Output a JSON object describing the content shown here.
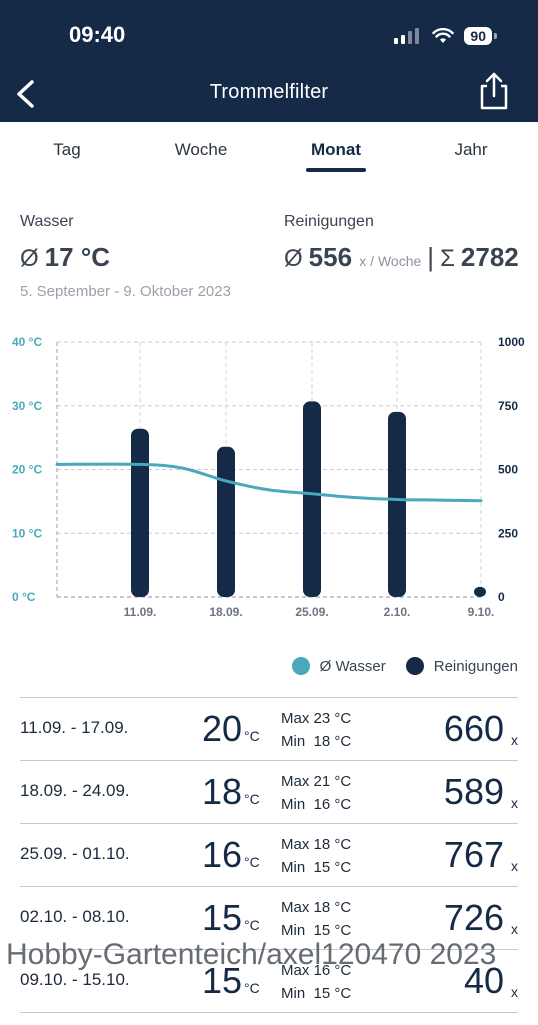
{
  "status_bar": {
    "time": "09:40",
    "battery": "90",
    "icons": [
      "signal-icon",
      "wifi-icon",
      "battery-icon"
    ]
  },
  "nav": {
    "title": "Trommelfilter",
    "back_icon": "chevron-left-icon",
    "share_icon": "share-icon"
  },
  "tabs": [
    {
      "label": "Tag",
      "active": false
    },
    {
      "label": "Woche",
      "active": false
    },
    {
      "label": "Monat",
      "active": true
    },
    {
      "label": "Jahr",
      "active": false
    }
  ],
  "summary": {
    "water_label": "Wasser",
    "water_avg_symbol": "Ø",
    "water_avg": "17 °C",
    "cleaning_label": "Reinigungen",
    "cleaning_avg_symbol": "Ø",
    "cleaning_avg": "556",
    "cleaning_avg_unit": "x / Woche",
    "separator": "|",
    "cleaning_sum_symbol": "Σ",
    "cleaning_sum": "2782",
    "date_range": "5. September - 9. Oktober 2023"
  },
  "chart_data": {
    "type": "bar",
    "categories": [
      "11.09.",
      "18.09.",
      "25.09.",
      "2.10.",
      "9.10."
    ],
    "left_ticks": [
      "0 °C",
      "10 °C",
      "20 °C",
      "30 °C",
      "40 °C"
    ],
    "right_ticks": [
      "0",
      "250",
      "500",
      "750",
      "1000"
    ],
    "ylim_left": [
      0,
      40
    ],
    "ylim_right": [
      0,
      1000
    ],
    "series": [
      {
        "name": "Reinigungen",
        "type": "bar",
        "axis": "right",
        "color": "#152a46",
        "values": [
          660,
          589,
          767,
          726,
          40
        ]
      },
      {
        "name": "Ø Wasser",
        "type": "line",
        "axis": "left",
        "color": "#4aa8bd",
        "x": [
          0,
          0.5,
          1,
          1.5,
          2,
          2.5,
          3,
          3.5,
          4
        ],
        "values": [
          20.8,
          20.2,
          18.2,
          16.8,
          16.2,
          15.6,
          15.3,
          15.2,
          15.1
        ]
      }
    ],
    "grid": true,
    "legend_position": "bottom-right"
  },
  "legend": [
    {
      "label": "Ø Wasser",
      "color": "#4aa8bd"
    },
    {
      "label": "Reinigungen",
      "color": "#152a46"
    }
  ],
  "rows": [
    {
      "range": "11.09. - 17.09.",
      "temp": "20",
      "temp_unit": "°C",
      "max": "Max 23 °C",
      "min": "Min  18 °C",
      "count": "660",
      "count_unit": "x"
    },
    {
      "range": "18.09. - 24.09.",
      "temp": "18",
      "temp_unit": "°C",
      "max": "Max 21 °C",
      "min": "Min  16 °C",
      "count": "589",
      "count_unit": "x"
    },
    {
      "range": "25.09. - 01.10.",
      "temp": "16",
      "temp_unit": "°C",
      "max": "Max 18 °C",
      "min": "Min  15 °C",
      "count": "767",
      "count_unit": "x"
    },
    {
      "range": "02.10. - 08.10.",
      "temp": "15",
      "temp_unit": "°C",
      "max": "Max 18 °C",
      "min": "Min  15 °C",
      "count": "726",
      "count_unit": "x"
    },
    {
      "range": "09.10. - 15.10.",
      "temp": "15",
      "temp_unit": "°C",
      "max": "Max 16 °C",
      "min": "Min  15 °C",
      "count": "40",
      "count_unit": "x"
    }
  ],
  "watermark": "Hobby-Gartenteich/axel120470 2023"
}
